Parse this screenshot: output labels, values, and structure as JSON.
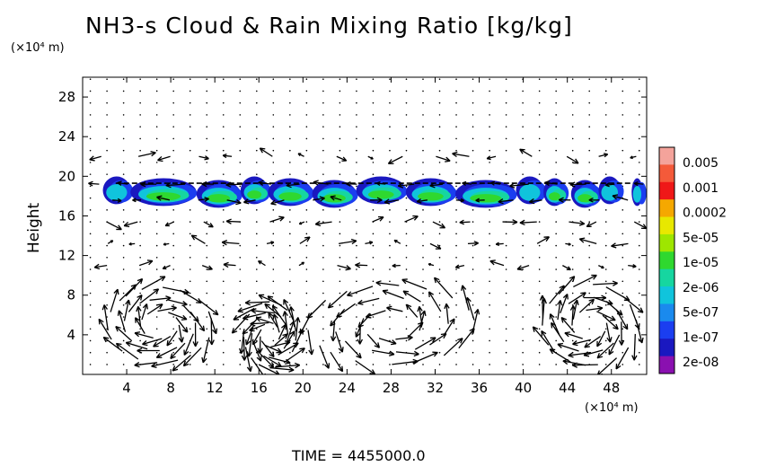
{
  "title": "NH3-s Cloud & Rain Mixing Ratio [kg/kg]",
  "y_unit": "(×10⁴ m)",
  "x_unit": "(×10⁴ m)",
  "ylabel": "Height",
  "time_label": "TIME  =  4455000.0",
  "chart_data": {
    "type": "heatmap",
    "title": "NH3-s Cloud & Rain Mixing Ratio [kg/kg]",
    "xlabel": "",
    "ylabel": "Height",
    "x_unit": "(×10⁴ m)",
    "y_unit": "(×10⁴ m)",
    "xlim": [
      0,
      51.2
    ],
    "ylim": [
      0,
      30
    ],
    "xticks": [
      4,
      8,
      12,
      16,
      20,
      24,
      28,
      32,
      36,
      40,
      44,
      48
    ],
    "yticks": [
      4,
      8,
      12,
      16,
      20,
      24,
      28
    ],
    "colorbar": {
      "labels": [
        "0.005",
        "0.001",
        "0.0002",
        "5e-05",
        "1e-05",
        "2e-06",
        "5e-07",
        "1e-07",
        "2e-08"
      ],
      "colors": [
        "#f4a39b",
        "#f45a3a",
        "#ef1818",
        "#f5a800",
        "#e8e800",
        "#9ee600",
        "#2fd82f",
        "#16d6a0",
        "#10c4dc",
        "#1a8aee",
        "#1b3ef0",
        "#1a18c0",
        "#8a10b0"
      ]
    },
    "cloud_layer": {
      "base_height": 17,
      "top_height": 19.8,
      "x_range": [
        2,
        51
      ],
      "peak_value_range": [
        "1e-05",
        "5e-05"
      ]
    },
    "wind_vectors": "arrows on regular grid; strong overturning cells below height 10"
  }
}
